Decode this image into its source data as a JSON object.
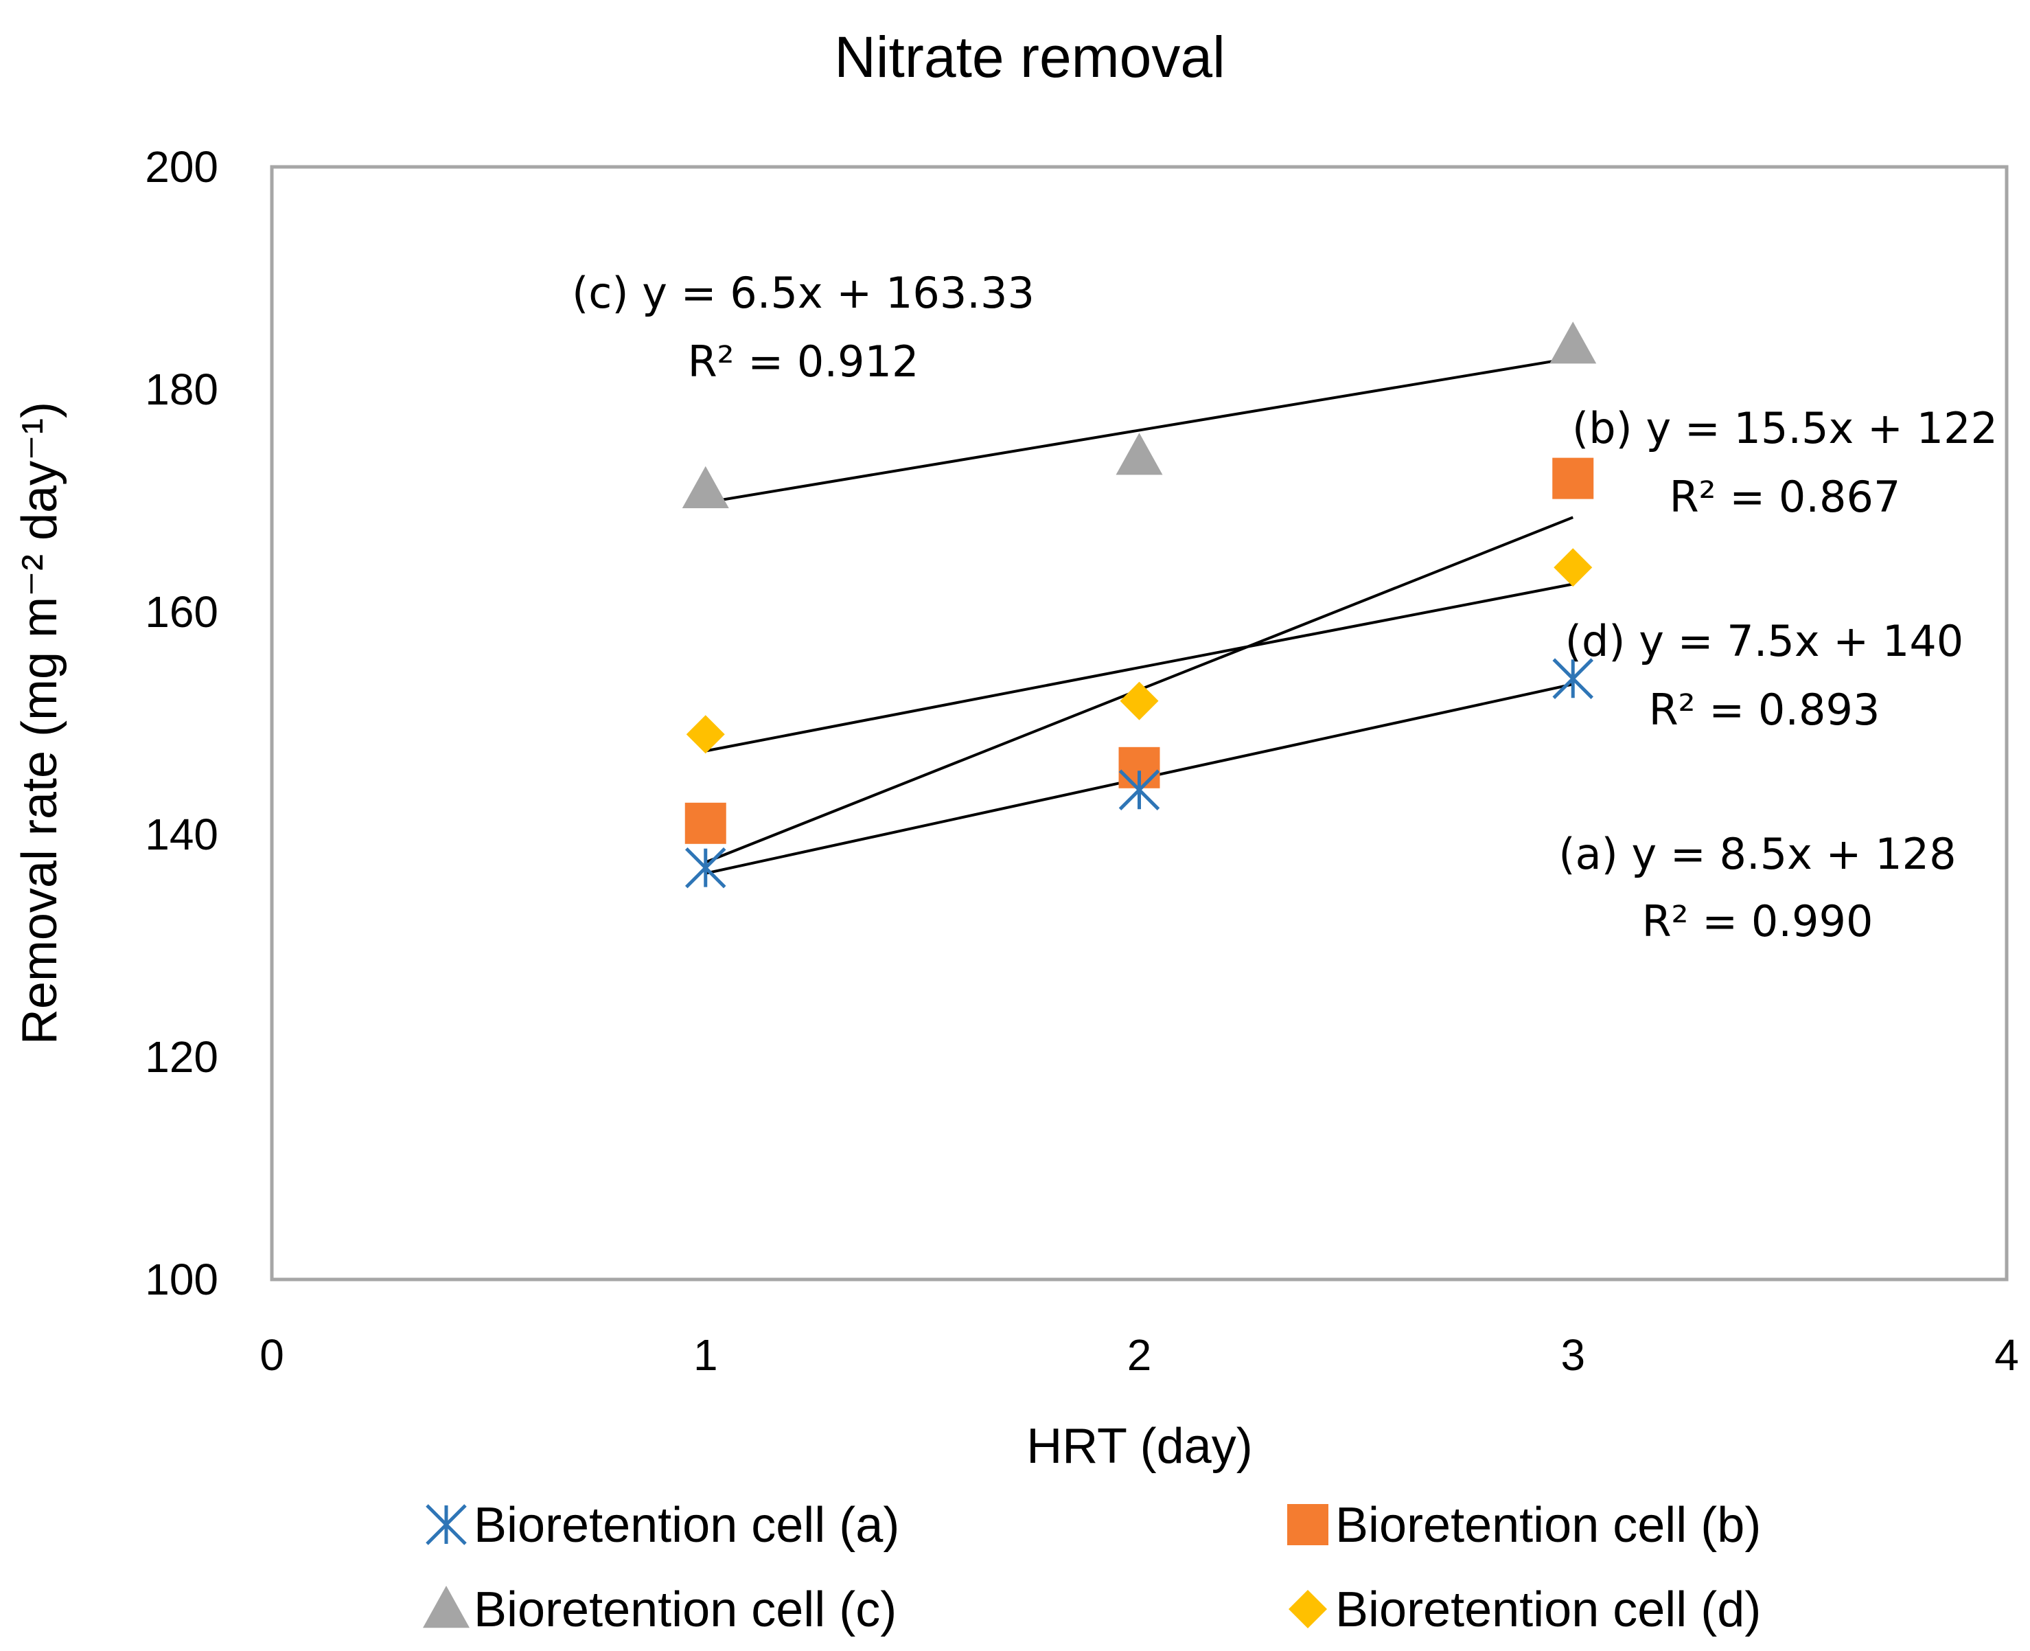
{
  "chart_data": {
    "type": "scatter",
    "title": "Nitrate removal",
    "xlabel": "HRT (day)",
    "ylabel": "Removal rate  (mg m⁻² day⁻¹)",
    "xlim": [
      0,
      4
    ],
    "ylim": [
      100,
      200
    ],
    "xticks": [
      0,
      1,
      2,
      3,
      4
    ],
    "yticks": [
      100,
      120,
      140,
      160,
      180,
      200
    ],
    "grid": false,
    "legend_position": "bottom",
    "series": [
      {
        "name": "Bioretention cell (a)",
        "marker": "asterisk",
        "color": "#2e75b6",
        "x": [
          1,
          2,
          3
        ],
        "y": [
          137,
          144,
          154
        ],
        "trendline": {
          "slope": 8.5,
          "intercept": 128,
          "equation": "(a) y = 8.5x + 128",
          "r2": "R² = 0.990"
        }
      },
      {
        "name": "Bioretention cell (b)",
        "marker": "square",
        "color": "#f47c30",
        "x": [
          1,
          2,
          3
        ],
        "y": [
          141,
          146,
          172
        ],
        "trendline": {
          "slope": 15.5,
          "intercept": 122,
          "equation": "(b) y = 15.5x + 122",
          "r2": "R² = 0.867"
        }
      },
      {
        "name": "Bioretention cell (c)",
        "marker": "triangle",
        "color": "#a5a5a5",
        "x": [
          1,
          2,
          3
        ],
        "y": [
          171,
          174,
          184
        ],
        "trendline": {
          "slope": 6.5,
          "intercept": 163.33,
          "equation": "(c) y = 6.5x + 163.33",
          "r2": "R² = 0.912"
        }
      },
      {
        "name": "Bioretention cell (d)",
        "marker": "diamond",
        "color": "#ffc000",
        "x": [
          1,
          2,
          3
        ],
        "y": [
          149,
          152,
          164
        ],
        "trendline": {
          "slope": 7.5,
          "intercept": 140,
          "equation": "(d) y = 7.5x + 140",
          "r2": "R² = 0.893"
        }
      }
    ]
  }
}
